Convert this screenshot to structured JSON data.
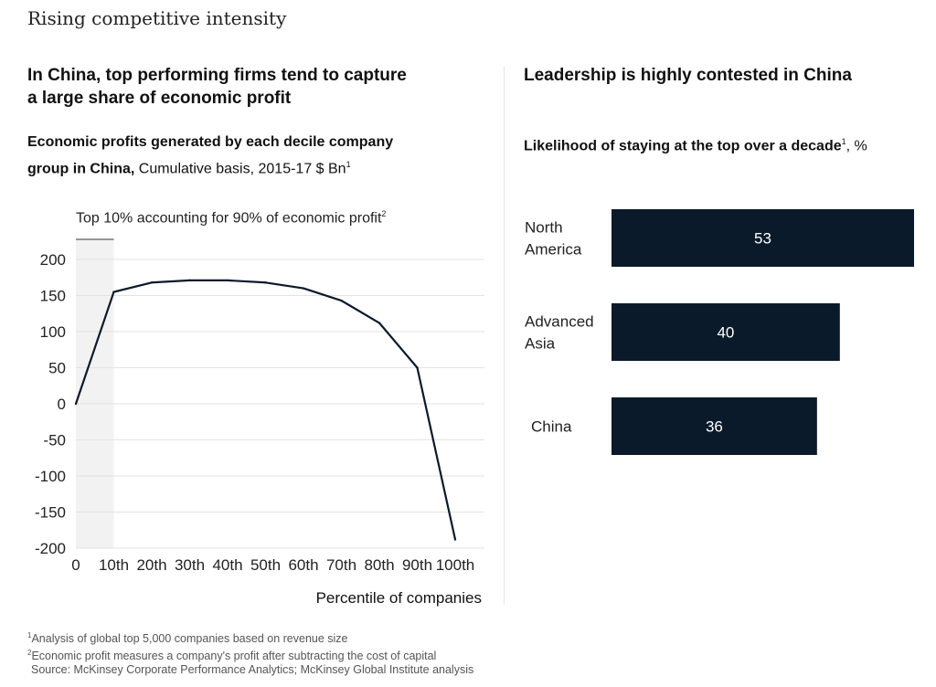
{
  "page_title": "Rising competitive intensity",
  "left_panel": {
    "heading_line1": "In China, top performing firms tend to capture",
    "heading_line2": "a large share of economic profit",
    "subtitle_bold_line1": "Economic profits generated by each decile company",
    "subtitle_bold_line2": "group in China,",
    "subtitle_regular": " Cumulative basis, 2015-17 $ Bn",
    "subtitle_sup": "1",
    "annotation": "Top 10% accounting for 90% of economic profit",
    "annotation_sup": "2"
  },
  "right_panel": {
    "heading": "Leadership is highly contested in China",
    "subtitle_bold": "Likelihood of staying at the top over a decade",
    "subtitle_sup": "1",
    "subtitle_regular": ", %"
  },
  "colors": {
    "line": "#0b1a2b",
    "bar": "#0b1a2b",
    "bar_label": "#ffffff",
    "highlight_band": "#f2f2f2",
    "grid": "#e3e3e3"
  },
  "chart_data": [
    {
      "type": "line",
      "title": "Economic profits generated by each decile company group in China",
      "xlabel": "Percentile of companies",
      "ylabel": "",
      "x": [
        "0",
        "10th",
        "20th",
        "30th",
        "40th",
        "50th",
        "60th",
        "70th",
        "80th",
        "90th",
        "100th"
      ],
      "values": [
        0,
        155,
        168,
        171,
        171,
        168,
        160,
        143,
        112,
        50,
        -188
      ],
      "yticks": [
        200,
        150,
        100,
        50,
        0,
        -50,
        -100,
        -150,
        -200
      ],
      "ylim": [
        -200,
        200
      ],
      "grid": true,
      "highlight_range": [
        "0",
        "10th"
      ]
    },
    {
      "type": "bar",
      "orientation": "horizontal",
      "title": "Likelihood of staying at the top over a decade, %",
      "categories": [
        [
          "North",
          "America"
        ],
        [
          "Advanced",
          "Asia"
        ],
        [
          "China"
        ]
      ],
      "values": [
        53,
        40,
        36
      ]
    }
  ],
  "footnotes": {
    "note1_sup": "1",
    "note1": "Analysis of global top 5,000 companies based on revenue size",
    "note2_sup": "2",
    "note2": "Economic profit measures a company's profit after subtracting the cost of capital",
    "source": "Source: McKinsey Corporate Performance Analytics; McKinsey Global Institute analysis"
  }
}
